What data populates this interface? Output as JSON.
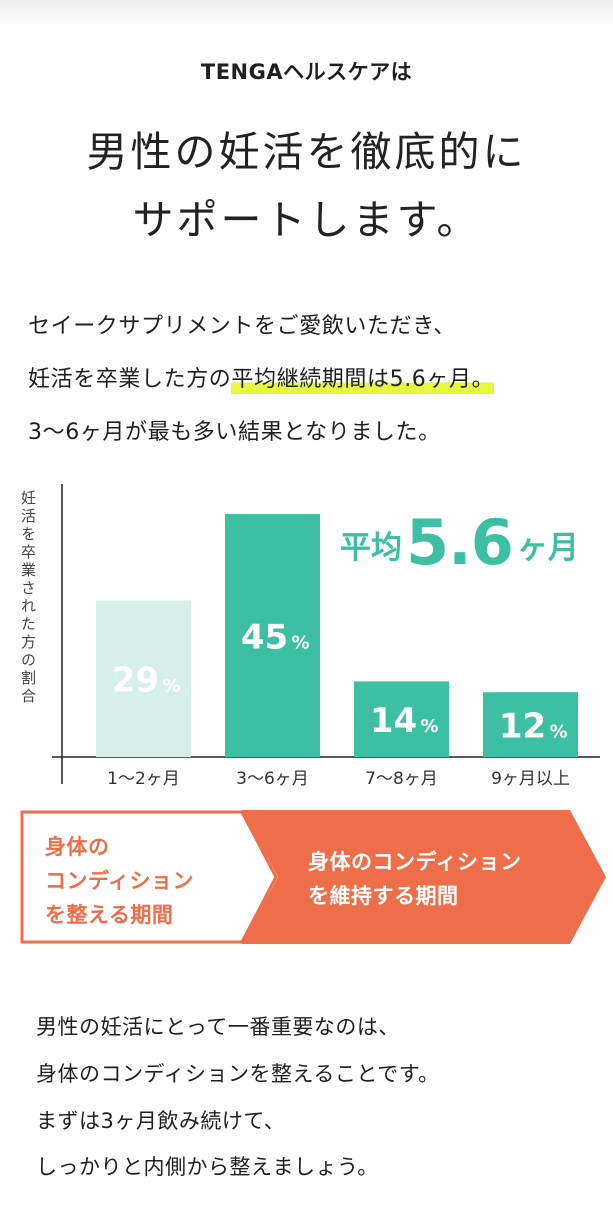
{
  "header": {
    "brand_line": "TENGAヘルスケアは",
    "headline_line1": "男性の妊活を徹底的に",
    "headline_line2": "サポートします。"
  },
  "lead": {
    "line1": "セイークサプリメントをご愛飲いただき、",
    "line2_prefix": "妊活を卒業した方の",
    "line2_highlight": "平均継続期間は5.6ヶ月。",
    "line3": "3〜6ヶ月が最も多い結果となりました。"
  },
  "chart_data": {
    "type": "bar",
    "ylabel": "妊活を卒業された方の割合",
    "categories": [
      "1〜2ヶ月",
      "3〜6ヶ月",
      "7〜8ヶ月",
      "9ヶ月以上"
    ],
    "values": [
      29,
      45,
      14,
      12
    ],
    "value_labels": [
      "29",
      "45",
      "14",
      "12"
    ],
    "unit": "%",
    "ylim": [
      0,
      50
    ],
    "bar_colors": [
      "#d6efe9",
      "#3dbfa4",
      "#3dbfa4",
      "#3dbfa4"
    ],
    "average": {
      "prefix": "平均",
      "value": "5.6",
      "unit": "ヶ月",
      "color": "#3dbfa4"
    }
  },
  "phase_band": {
    "left_line1": "身体の",
    "left_line2": "コンディション",
    "left_line3": "を整える期間",
    "right_line1": "身体のコンディション",
    "right_line2": "を維持する期間",
    "accent_color": "#ee6e4a"
  },
  "body": {
    "line1": "男性の妊活にとって一番重要なのは、",
    "line2": "身体のコンディションを整えることです。",
    "line3": "まずは3ヶ月飲み続けて、",
    "line4": "しっかりと内側から整えましょう。"
  }
}
